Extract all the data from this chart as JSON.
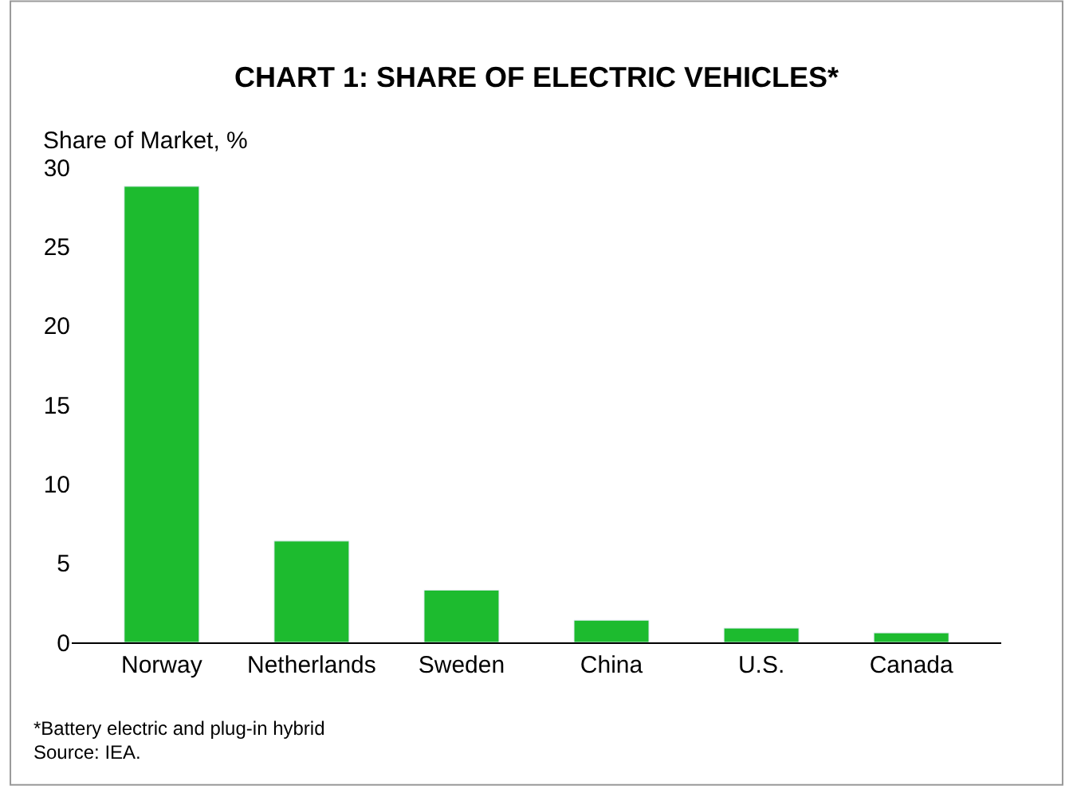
{
  "chart_data": {
    "type": "bar",
    "title": "CHART 1: SHARE OF ELECTRIC VEHICLES*",
    "ylabel": "Share of Market, %",
    "categories": [
      "Norway",
      "Netherlands",
      "Sweden",
      "China",
      "U.S.",
      "Canada"
    ],
    "values": [
      28.8,
      6.4,
      3.3,
      1.4,
      0.9,
      0.6
    ],
    "color": "#1dbb2f",
    "ylim": [
      0,
      30
    ],
    "yticks": [
      0,
      5,
      10,
      15,
      20,
      25,
      30
    ],
    "legend": false,
    "annotations": [
      "*Battery electric and plug-in hybrid",
      "Source: IEA."
    ]
  }
}
